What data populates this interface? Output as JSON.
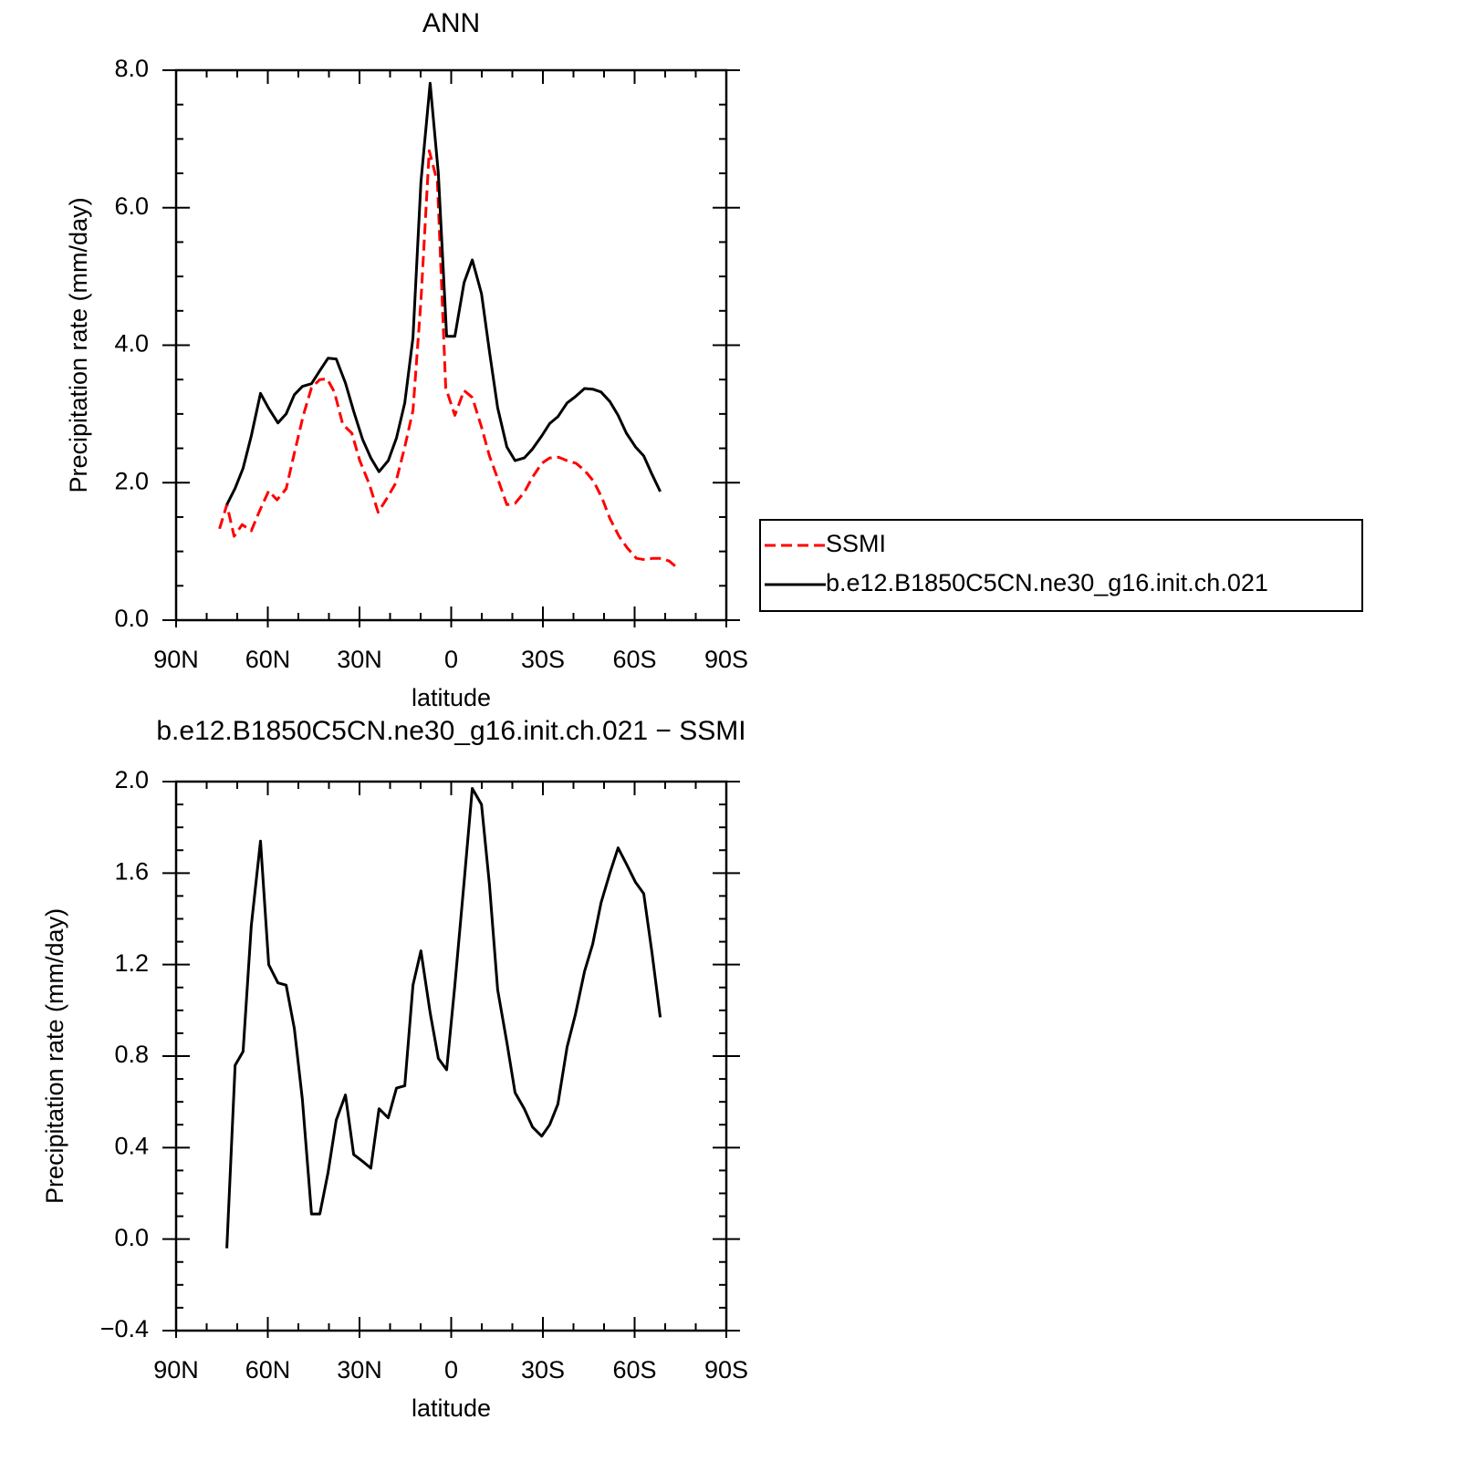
{
  "chart_data": [
    {
      "type": "line",
      "title": "ANN",
      "xlabel": "latitude",
      "ylabel": "Precipitation rate (mm/day)",
      "xlim": [
        90,
        -90
      ],
      "xticks": [
        {
          "value": 90,
          "label": "90N"
        },
        {
          "value": 60,
          "label": "60N"
        },
        {
          "value": 30,
          "label": "30N"
        },
        0,
        {
          "value": -30,
          "label": "30S"
        },
        {
          "value": -60,
          "label": "60S"
        },
        {
          "value": -90,
          "label": "90S"
        }
      ],
      "xminorticks": [
        80,
        70,
        50,
        40,
        20,
        10,
        -10,
        -20,
        -40,
        -50,
        -70,
        -80
      ],
      "ylim": [
        0,
        8
      ],
      "yticks": [
        {
          "value": 0,
          "label": "0.0"
        },
        {
          "value": 2,
          "label": "2.0"
        },
        {
          "value": 4,
          "label": "4.0"
        },
        {
          "value": 6,
          "label": "6.0"
        },
        {
          "value": 8,
          "label": "8.0"
        }
      ],
      "yminorticks": [
        0.5,
        1,
        1.5,
        2.5,
        3,
        3.5,
        4.5,
        5,
        5.5,
        6.5,
        7,
        7.5
      ],
      "legend": "right",
      "series": [
        {
          "name": "SSMI",
          "color": "#ff0000",
          "linestyle": "dashed",
          "x": [
            75.8,
            73.4,
            71.0,
            68.4,
            65.4,
            62.7,
            59.7,
            57.0,
            54.0,
            51.3,
            48.4,
            45.7,
            43.0,
            40.6,
            38.2,
            35.5,
            32.5,
            29.9,
            26.9,
            23.9,
            21.2,
            18.2,
            15.2,
            12.5,
            9.9,
            7.2,
            4.5,
            1.8,
            -1.2,
            -4.2,
            -6.9,
            -9.9,
            -12.5,
            -15.2,
            -18.2,
            -20.9,
            -23.9,
            -26.6,
            -29.6,
            -32.2,
            -35.2,
            -37.9,
            -40.9,
            -43.6,
            -46.6,
            -49.3,
            -51.9,
            -54.9,
            -57.6,
            -60.6,
            -63.3,
            -66.0,
            -68.7,
            -71.3,
            -74.0
          ],
          "values": [
            1.33,
            1.68,
            1.22,
            1.39,
            1.3,
            1.59,
            1.88,
            1.75,
            1.91,
            2.43,
            2.98,
            3.38,
            3.5,
            3.51,
            3.32,
            2.85,
            2.72,
            2.32,
            1.99,
            1.57,
            1.76,
            1.99,
            2.52,
            3.05,
            4.64,
            6.83,
            6.37,
            3.38,
            2.98,
            3.34,
            3.24,
            2.81,
            2.39,
            2.06,
            1.68,
            1.7,
            1.86,
            2.08,
            2.28,
            2.36,
            2.37,
            2.32,
            2.28,
            2.18,
            2.02,
            1.78,
            1.48,
            1.22,
            1.05,
            0.9,
            0.88,
            0.9,
            0.9,
            0.86,
            0.76
          ]
        },
        {
          "name": "b.e12.B1850C5CN.ne30_g16.init.ch.021",
          "color": "#000000",
          "linestyle": "solid",
          "x": [
            73.4,
            70.7,
            68.1,
            65.4,
            62.4,
            59.7,
            56.7,
            54.0,
            51.3,
            48.7,
            45.7,
            43.0,
            40.3,
            37.6,
            34.6,
            31.9,
            29.0,
            26.3,
            23.6,
            20.6,
            17.9,
            15.2,
            12.5,
            9.9,
            6.9,
            4.2,
            1.5,
            -1.2,
            -4.2,
            -6.9,
            -9.9,
            -12.5,
            -15.2,
            -18.2,
            -20.9,
            -23.9,
            -26.6,
            -29.6,
            -32.2,
            -34.9,
            -37.9,
            -40.6,
            -43.6,
            -46.3,
            -49.0,
            -51.9,
            -54.6,
            -57.3,
            -60.3,
            -63.0,
            -65.7,
            -68.4
          ],
          "values": [
            1.68,
            1.92,
            2.21,
            2.68,
            3.3,
            3.08,
            2.87,
            3.0,
            3.28,
            3.4,
            3.44,
            3.63,
            3.81,
            3.8,
            3.45,
            3.04,
            2.63,
            2.36,
            2.16,
            2.32,
            2.65,
            3.16,
            4.11,
            6.37,
            7.81,
            6.5,
            4.13,
            4.13,
            4.91,
            5.24,
            4.75,
            3.91,
            3.09,
            2.52,
            2.32,
            2.36,
            2.49,
            2.68,
            2.86,
            2.96,
            3.16,
            3.25,
            3.37,
            3.36,
            3.32,
            3.18,
            2.98,
            2.72,
            2.52,
            2.39,
            2.12,
            1.87
          ]
        }
      ]
    },
    {
      "type": "line",
      "title": "b.e12.B1850C5CN.ne30_g16.init.ch.021 − SSMI",
      "xlabel": "latitude",
      "ylabel": "Precipitation rate (mm/day)",
      "xlim": [
        90,
        -90
      ],
      "xticks": [
        {
          "value": 90,
          "label": "90N"
        },
        {
          "value": 60,
          "label": "60N"
        },
        {
          "value": 30,
          "label": "30N"
        },
        0,
        {
          "value": -30,
          "label": "30S"
        },
        {
          "value": -60,
          "label": "60S"
        },
        {
          "value": -90,
          "label": "90S"
        }
      ],
      "xminorticks": [
        80,
        70,
        50,
        40,
        20,
        10,
        -10,
        -20,
        -40,
        -50,
        -70,
        -80
      ],
      "ylim": [
        -0.4,
        2.0
      ],
      "yticks": [
        {
          "value": -0.4,
          "label": "−0.4"
        },
        {
          "value": 0,
          "label": "0.0"
        },
        0.4,
        0.8,
        1.2,
        1.6,
        {
          "value": 2,
          "label": "2.0"
        }
      ],
      "yminorticks": [
        -0.3,
        -0.2,
        -0.1,
        0.1,
        0.2,
        0.3,
        0.5,
        0.6,
        0.7,
        0.9,
        1.0,
        1.1,
        1.3,
        1.4,
        1.5,
        1.7,
        1.8,
        1.9
      ],
      "series": [
        {
          "color": "#000000",
          "linestyle": "solid",
          "x": [
            73.4,
            70.7,
            68.1,
            65.4,
            62.4,
            59.7,
            56.7,
            54.0,
            51.3,
            48.7,
            45.7,
            43.0,
            40.3,
            37.6,
            34.6,
            31.9,
            29.0,
            26.3,
            23.6,
            20.6,
            17.9,
            15.2,
            12.5,
            9.9,
            6.9,
            4.2,
            1.5,
            -1.2,
            -4.2,
            -6.9,
            -9.9,
            -12.5,
            -15.2,
            -18.2,
            -20.9,
            -23.9,
            -26.6,
            -29.6,
            -32.2,
            -34.9,
            -37.9,
            -40.6,
            -43.6,
            -46.3,
            -49.0,
            -51.9,
            -54.6,
            -57.3,
            -60.3,
            -63.0,
            -65.7,
            -68.4
          ],
          "values": [
            -0.04,
            0.76,
            0.82,
            1.37,
            1.74,
            1.2,
            1.12,
            1.11,
            0.92,
            0.61,
            0.11,
            0.11,
            0.29,
            0.52,
            0.63,
            0.37,
            0.34,
            0.31,
            0.57,
            0.53,
            0.66,
            0.67,
            1.11,
            1.26,
            0.99,
            0.79,
            0.74,
            1.11,
            1.56,
            1.97,
            1.9,
            1.55,
            1.09,
            0.86,
            0.64,
            0.57,
            0.49,
            0.45,
            0.5,
            0.59,
            0.84,
            0.98,
            1.17,
            1.29,
            1.47,
            1.6,
            1.71,
            1.64,
            1.56,
            1.51,
            1.25,
            0.97
          ]
        }
      ]
    }
  ]
}
